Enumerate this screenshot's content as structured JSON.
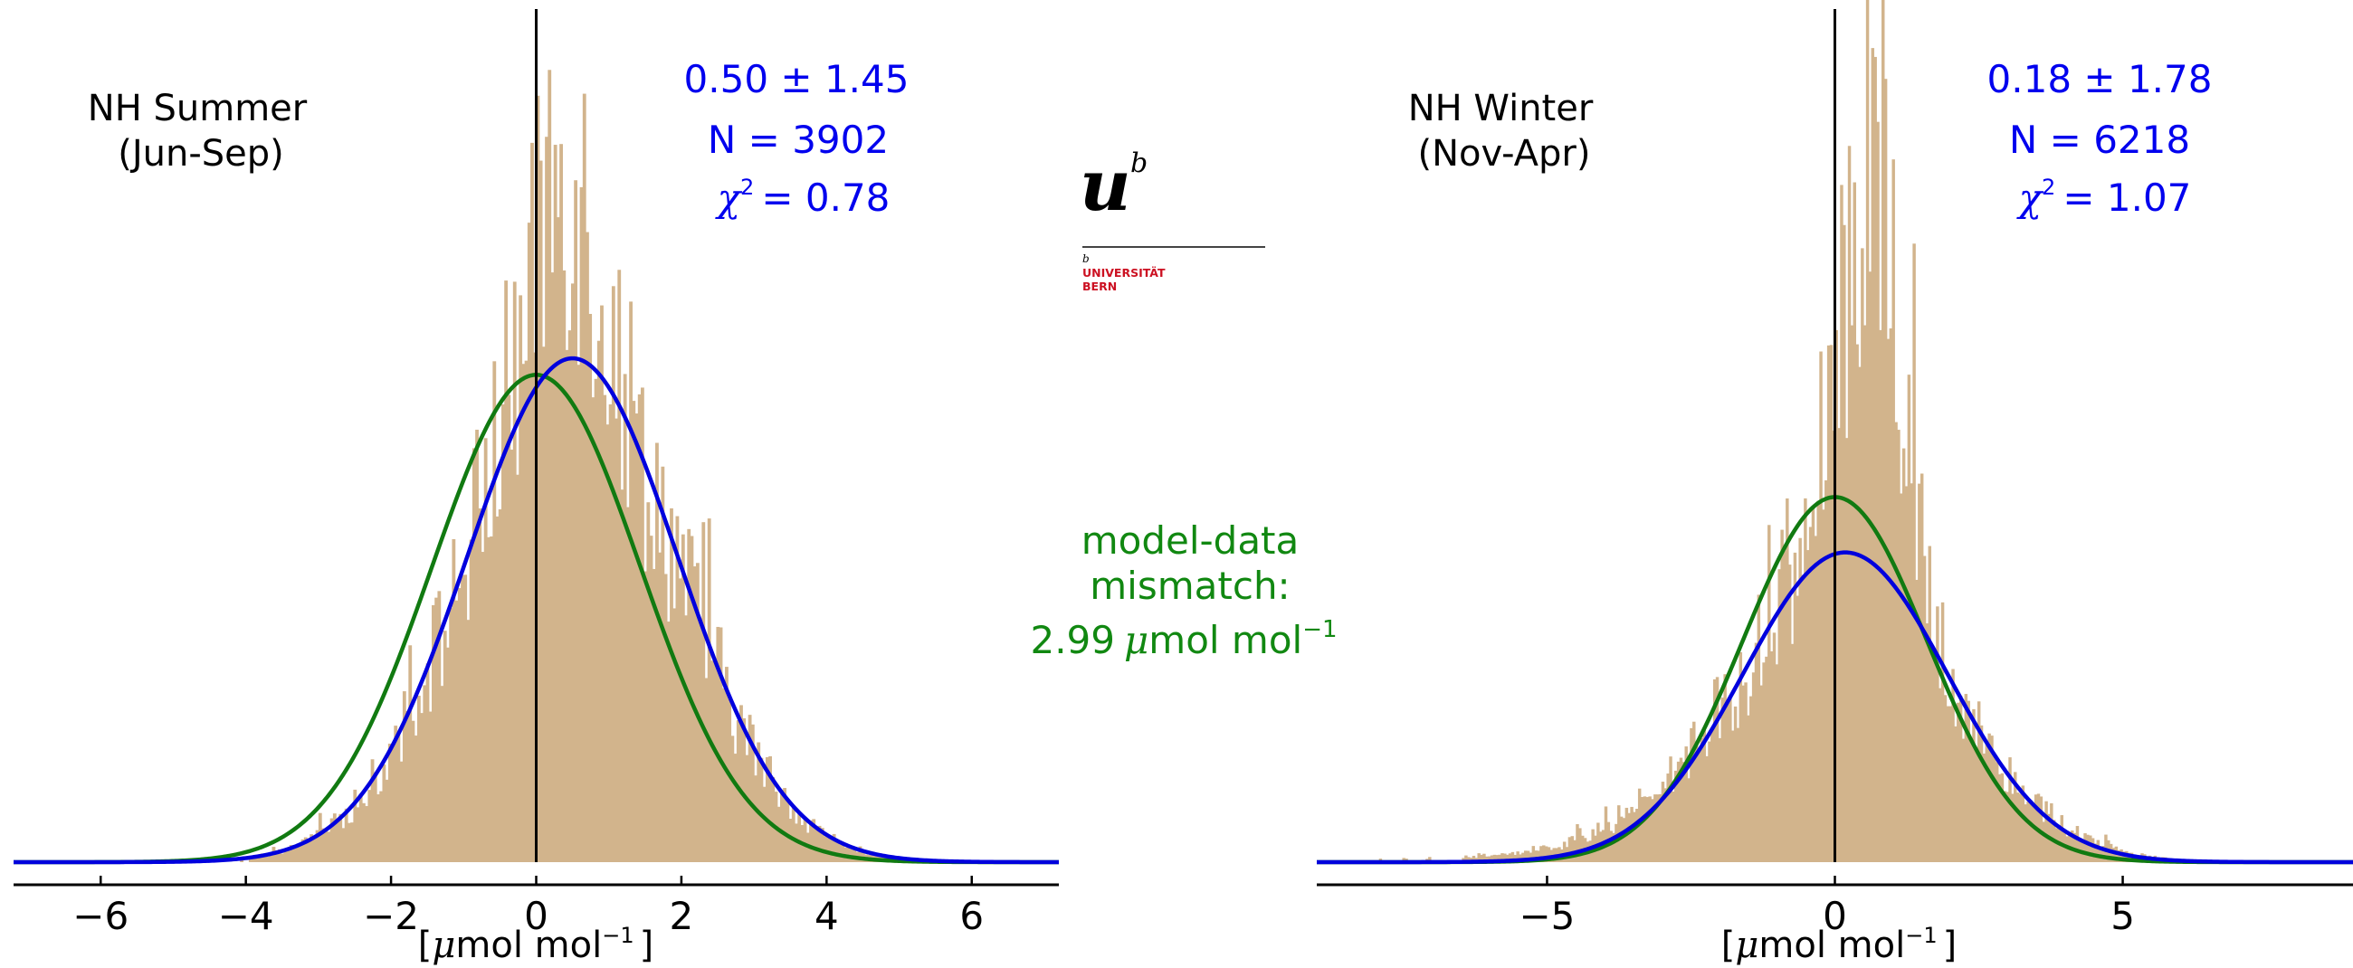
{
  "colors": {
    "histogram": "#d2b48c",
    "observed_fit": "#0000dd",
    "expected_fit": "#117a11",
    "zero_line": "#000000",
    "axis": "#000000",
    "annotation_blue": "#0000ee",
    "annotation_green": "#118811",
    "logo_red": "#cc1122"
  },
  "logo": {
    "icon": "unibe-logo",
    "letter": "u",
    "superscript": "b",
    "small_b": "b",
    "line1": "UNIVERSITÄT",
    "line2": "BERN"
  },
  "middle_annotation": {
    "line1": "model-data",
    "line2": "mismatch:",
    "line3_value": "2.99",
    "line3_mu": "μ",
    "line3_unit": "mol mol",
    "line3_exp": "−1"
  },
  "chart_data": [
    {
      "type": "bar",
      "panel_title": [
        "NH Summer",
        "(Jun-Sep)"
      ],
      "stats": {
        "mean_sd": "0.50 ± 1.45",
        "n_label": "N = 3902",
        "chi_symbol": "χ",
        "chi_exp": "2",
        "chi_value": "= 0.78"
      },
      "xlabel": {
        "open": "[",
        "mu": "μ",
        "unit": "mol mol",
        "exp": "−1",
        "close": "]"
      },
      "xlim": [
        -7.2,
        7.2
      ],
      "xticks": [
        -6,
        -4,
        -2,
        0,
        2,
        4,
        6
      ],
      "xtick_labels": [
        "−6",
        "−4",
        "−2",
        "0",
        "2",
        "4",
        "6"
      ],
      "ylim": [
        0,
        1.0
      ],
      "histogram": {
        "n": 3902,
        "mean": 0.5,
        "sd": 1.45,
        "bin_width": 0.04,
        "core_sd": 0.55,
        "core_weight": 0.17
      },
      "curves": [
        {
          "name": "observed fit",
          "mean": 0.5,
          "sd": 1.45,
          "peak": 0.61,
          "color": "#0000dd"
        },
        {
          "name": "expected fit",
          "mean": 0.0,
          "sd": 1.435,
          "peak": 0.59,
          "color": "#117a11"
        }
      ],
      "zero_line": 0
    },
    {
      "type": "bar",
      "panel_title": [
        "NH Winter",
        "(Nov-Apr)"
      ],
      "stats": {
        "mean_sd": "0.18 ± 1.78",
        "n_label": "N = 6218",
        "chi_symbol": "χ",
        "chi_exp": "2",
        "chi_value": "= 1.07"
      },
      "xlabel": {
        "open": "[",
        "mu": "μ",
        "unit": "mol mol",
        "exp": "−1",
        "close": "]"
      },
      "xlim": [
        -9.0,
        9.0
      ],
      "xticks": [
        -5,
        0,
        5
      ],
      "xtick_labels": [
        "−5",
        "0",
        "5"
      ],
      "ylim": [
        0,
        1.0
      ],
      "histogram": {
        "n": 6218,
        "mean": 0.18,
        "sd": 1.78,
        "bin_width": 0.045,
        "core_sd": 0.45,
        "core_weight": 0.35,
        "core_mean": 0.65
      },
      "curves": [
        {
          "name": "observed fit",
          "mean": 0.18,
          "sd": 1.78,
          "peak": 0.375,
          "color": "#0000dd"
        },
        {
          "name": "expected fit",
          "mean": 0.0,
          "sd": 1.6,
          "peak": 0.442,
          "color": "#117a11"
        }
      ],
      "zero_line": 0
    }
  ]
}
